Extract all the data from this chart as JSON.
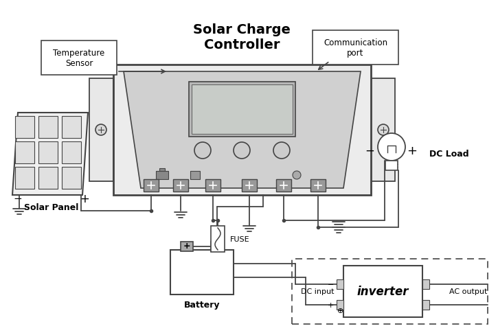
{
  "bg_color": "#ffffff",
  "lc": "#444444",
  "figsize": [
    7.25,
    4.89
  ],
  "dpi": 100,
  "texts": {
    "solar_charge_controller": "Solar Charge\nController",
    "temperature_sensor": "Temperature\nSensor",
    "communication_port": "Communication\nport",
    "solar_panel": "Solar Panel",
    "dc_load": "DC Load",
    "battery": "Battery",
    "fuse": "FUSE",
    "dc_input": "DC input",
    "inverter": "inverter",
    "ac_output": "AC output"
  }
}
